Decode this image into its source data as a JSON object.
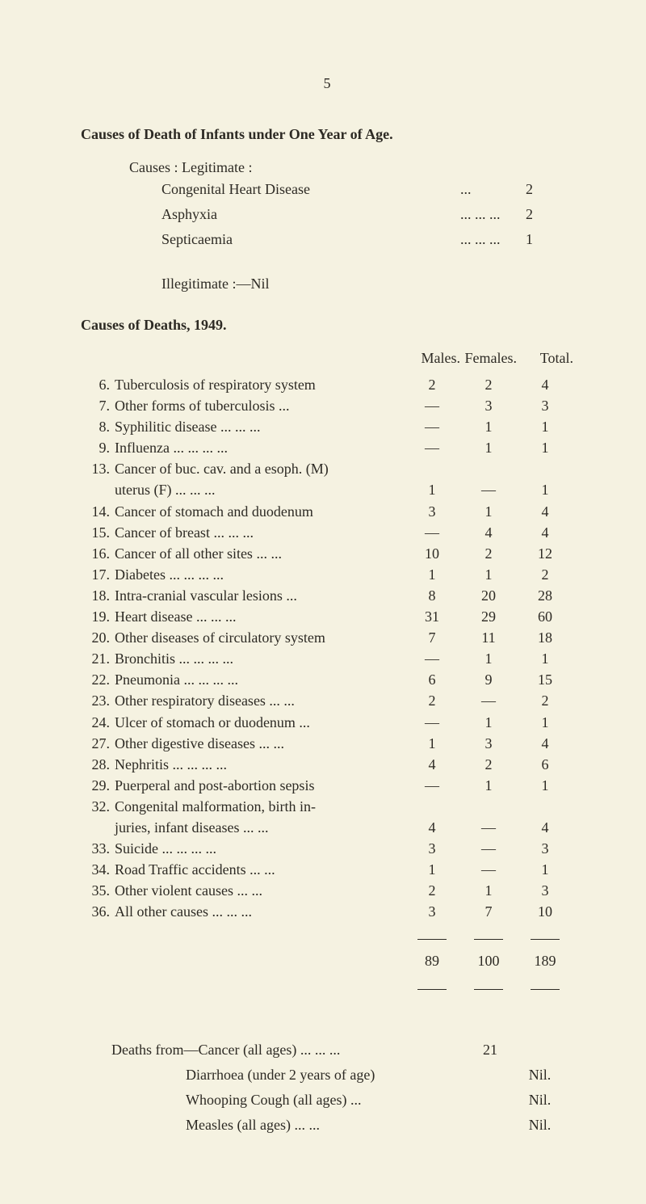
{
  "page_number": "5",
  "heading1": "Causes of Death of Infants under One Year of Age.",
  "causes_legitimate_label": "Causes : Legitimate :",
  "infant_causes": [
    {
      "label": "Congenital Heart Disease",
      "dots": "...",
      "count": "2"
    },
    {
      "label": "Asphyxia",
      "dots": "...    ...    ...",
      "count": "2"
    },
    {
      "label": "Septicaemia",
      "dots": "...    ...    ...",
      "count": "1"
    }
  ],
  "illegitimate": "Illegitimate :—Nil",
  "heading2": "Causes of Deaths, 1949.",
  "columns": {
    "males": "Males.",
    "females": "Females.",
    "total": "Total."
  },
  "rows": [
    {
      "n": "6.",
      "label": "Tuberculosis of respiratory system",
      "m": "2",
      "f": "2",
      "t": "4"
    },
    {
      "n": "7.",
      "label": "Other forms of tuberculosis    ...",
      "m": "—",
      "f": "3",
      "t": "3"
    },
    {
      "n": "8.",
      "label": "Syphilitic disease    ...    ...    ...",
      "m": "—",
      "f": "1",
      "t": "1"
    },
    {
      "n": "9.",
      "label": "Influenza    ...    ...    ...    ...",
      "m": "—",
      "f": "1",
      "t": "1"
    },
    {
      "n": "13.",
      "label": "Cancer of buc. cav. and a esoph. (M)\n    uterus (F)    ...    ...    ...",
      "m": "1",
      "f": "—",
      "t": "1"
    },
    {
      "n": "14.",
      "label": "Cancer of stomach and duodenum",
      "m": "3",
      "f": "1",
      "t": "4"
    },
    {
      "n": "15.",
      "label": "Cancer of breast    ...    ...    ...",
      "m": "—",
      "f": "4",
      "t": "4"
    },
    {
      "n": "16.",
      "label": "Cancer of all other sites    ...    ...",
      "m": "10",
      "f": "2",
      "t": "12"
    },
    {
      "n": "17.",
      "label": "Diabetes    ...    ...    ...    ...",
      "m": "1",
      "f": "1",
      "t": "2"
    },
    {
      "n": "18.",
      "label": "Intra-cranial vascular lesions    ...",
      "m": "8",
      "f": "20",
      "t": "28"
    },
    {
      "n": "19.",
      "label": "Heart disease    ...    ...    ...",
      "m": "31",
      "f": "29",
      "t": "60"
    },
    {
      "n": "20.",
      "label": "Other diseases of circulatory system",
      "m": "7",
      "f": "11",
      "t": "18"
    },
    {
      "n": "21.",
      "label": "Bronchitis    ...    ...    ...    ...",
      "m": "—",
      "f": "1",
      "t": "1"
    },
    {
      "n": "22.",
      "label": "Pneumonia    ...    ...    ...    ...",
      "m": "6",
      "f": "9",
      "t": "15"
    },
    {
      "n": "23.",
      "label": "Other respiratory diseases ...    ...",
      "m": "2",
      "f": "—",
      "t": "2"
    },
    {
      "n": "24.",
      "label": "Ulcer of stomach or duodenum    ...",
      "m": "—",
      "f": "1",
      "t": "1"
    },
    {
      "n": "27.",
      "label": "Other digestive diseases    ...    ...",
      "m": "1",
      "f": "3",
      "t": "4"
    },
    {
      "n": "28.",
      "label": "Nephritis    ...    ...    ...    ...",
      "m": "4",
      "f": "2",
      "t": "6"
    },
    {
      "n": "29.",
      "label": "Puerperal and post-abortion sepsis",
      "m": "—",
      "f": "1",
      "t": "1"
    },
    {
      "n": "32.",
      "label": "Congenital malformation, birth in-\n    juries, infant diseases ...    ...",
      "m": "4",
      "f": "—",
      "t": "4"
    },
    {
      "n": "33.",
      "label": "Suicide    ...    ...    ...    ...",
      "m": "3",
      "f": "—",
      "t": "3"
    },
    {
      "n": "34.",
      "label": "Road Traffic accidents    ...    ...",
      "m": "1",
      "f": "—",
      "t": "1"
    },
    {
      "n": "35.",
      "label": "Other violent causes    ...    ...",
      "m": "2",
      "f": "1",
      "t": "3"
    },
    {
      "n": "36.",
      "label": "All other causes    ...    ...    ...",
      "m": "3",
      "f": "7",
      "t": "10"
    }
  ],
  "totals": {
    "m": "89",
    "f": "100",
    "t": "189"
  },
  "deaths_from_prefix": "Deaths from—",
  "deaths_from": [
    {
      "label": "Cancer (all ages) ...    ...    ...",
      "val": "21"
    },
    {
      "label": "Diarrhoea (under 2 years of age)",
      "val": "Nil."
    },
    {
      "label": "Whooping Cough (all ages)    ...",
      "val": "Nil."
    },
    {
      "label": "Measles (all ages)    ...    ...",
      "val": "Nil."
    }
  ]
}
